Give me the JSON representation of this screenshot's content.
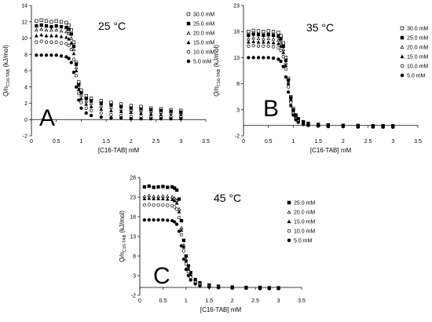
{
  "chart_data": [
    {
      "type": "scatter",
      "panel_label": "A",
      "temperature": "25 °C",
      "xlabel": "[C16-TAB] mM",
      "ylabel": "Q/n",
      "ylabel_sub": "C16-TAB",
      "ylabel_unit": "(kJ/mol)",
      "xlim": [
        0,
        3.5
      ],
      "ylim": [
        -2,
        14
      ],
      "xticks": [
        "0",
        "0.5",
        "1",
        "1.5",
        "2",
        "2.5",
        "3",
        "3.5"
      ],
      "yticks": [
        "-2",
        "0",
        "2",
        "4",
        "6",
        "8",
        "10",
        "12",
        "14"
      ],
      "xtick_values": [
        0,
        0.5,
        1,
        1.5,
        2,
        2.5,
        3,
        3.5
      ],
      "ytick_values": [
        -2,
        0,
        2,
        4,
        6,
        8,
        10,
        12,
        14
      ],
      "legend_position": "top-right",
      "series": [
        {
          "name": "30.0 mM",
          "marker": "open-square",
          "x": [
            0.1,
            0.2,
            0.3,
            0.4,
            0.5,
            0.6,
            0.7,
            0.75,
            0.8,
            0.85,
            0.9,
            0.95,
            1.0,
            1.1,
            1.2,
            1.4,
            1.6,
            1.8,
            2.0,
            2.2,
            2.4,
            2.6,
            2.8,
            3.0
          ],
          "y": [
            12.1,
            12.2,
            12.1,
            12.0,
            12.1,
            12.0,
            11.9,
            11.6,
            11.0,
            9.5,
            7.0,
            4.6,
            3.6,
            2.9,
            2.6,
            2.3,
            2.1,
            1.9,
            1.7,
            1.6,
            1.4,
            1.3,
            1.2,
            1.1
          ]
        },
        {
          "name": "25.0 mM",
          "marker": "filled-square",
          "x": [
            0.1,
            0.2,
            0.3,
            0.4,
            0.5,
            0.6,
            0.7,
            0.75,
            0.8,
            0.85,
            0.9,
            0.95,
            1.0,
            1.1,
            1.2,
            1.4,
            1.6,
            1.8,
            2.0,
            2.2,
            2.4,
            2.6,
            2.8,
            3.0
          ],
          "y": [
            11.5,
            11.6,
            11.5,
            11.4,
            11.5,
            11.4,
            11.3,
            11.1,
            10.5,
            9.0,
            6.8,
            4.3,
            3.3,
            2.6,
            2.3,
            2.0,
            1.8,
            1.6,
            1.4,
            1.3,
            1.2,
            1.1,
            1.0,
            0.9
          ]
        },
        {
          "name": "20.0 mM",
          "marker": "open-triangle",
          "x": [
            0.1,
            0.2,
            0.3,
            0.4,
            0.5,
            0.6,
            0.7,
            0.75,
            0.8,
            0.85,
            0.9,
            0.95,
            1.0,
            1.1,
            1.2,
            1.4,
            1.6,
            1.8,
            2.0,
            2.2,
            2.4,
            2.6,
            2.8,
            3.0
          ],
          "y": [
            11.0,
            11.1,
            11.0,
            11.0,
            11.0,
            10.9,
            10.8,
            10.6,
            10.0,
            8.6,
            6.4,
            4.0,
            3.0,
            2.3,
            2.0,
            1.7,
            1.5,
            1.3,
            1.2,
            1.1,
            1.0,
            0.9,
            0.8,
            0.7
          ]
        },
        {
          "name": "15.0 mM",
          "marker": "filled-triangle",
          "x": [
            0.1,
            0.2,
            0.3,
            0.4,
            0.5,
            0.6,
            0.7,
            0.75,
            0.8,
            0.85,
            0.9,
            0.95,
            1.0,
            1.1,
            1.2,
            1.4,
            1.6,
            1.8,
            2.0,
            2.2,
            2.4,
            2.6,
            2.8,
            3.0
          ],
          "y": [
            10.3,
            10.4,
            10.3,
            10.3,
            10.3,
            10.2,
            10.1,
            9.9,
            9.4,
            8.1,
            6.0,
            3.7,
            2.6,
            1.9,
            1.6,
            1.3,
            1.1,
            1.0,
            0.9,
            0.8,
            0.7,
            0.6,
            0.5,
            0.5
          ]
        },
        {
          "name": "10.0 mM",
          "marker": "open-circle",
          "x": [
            0.1,
            0.2,
            0.3,
            0.4,
            0.5,
            0.6,
            0.7,
            0.75,
            0.8,
            0.85,
            0.9,
            0.95,
            1.0,
            1.1,
            1.2,
            1.4,
            1.6,
            1.8,
            2.0,
            2.2,
            2.4,
            2.6,
            2.8,
            3.0
          ],
          "y": [
            9.5,
            9.6,
            9.5,
            9.5,
            9.5,
            9.4,
            9.3,
            9.1,
            8.6,
            7.4,
            5.4,
            3.2,
            2.1,
            1.4,
            1.1,
            0.8,
            0.6,
            0.5,
            0.4,
            0.4,
            0.3,
            0.3,
            0.3,
            0.3
          ]
        },
        {
          "name": "5.0 mM",
          "marker": "filled-circle",
          "x": [
            0.1,
            0.2,
            0.3,
            0.4,
            0.5,
            0.6,
            0.7,
            0.75,
            0.8,
            0.85,
            0.9,
            0.95,
            1.0,
            1.1,
            1.2,
            1.4,
            1.6,
            1.8,
            2.0,
            2.2,
            2.4,
            2.6,
            2.8,
            3.0
          ],
          "y": [
            7.9,
            7.9,
            7.9,
            7.9,
            7.9,
            7.8,
            7.7,
            7.5,
            7.0,
            5.8,
            4.0,
            2.4,
            1.4,
            0.8,
            0.5,
            0.3,
            0.2,
            0.2,
            0.1,
            0.1,
            0.1,
            0.1,
            0.1,
            0.1
          ]
        }
      ]
    },
    {
      "type": "scatter",
      "panel_label": "B",
      "temperature": "35 °C",
      "xlabel": "[C16-TAB] mM",
      "ylabel": "Q/n",
      "ylabel_sub": "C16-TAB",
      "ylabel_unit": "(kJ/mol)",
      "xlim": [
        0,
        3.5
      ],
      "ylim": [
        -2,
        23
      ],
      "xticks": [
        "0",
        "0.5",
        "1",
        "1.5",
        "2",
        "2.5",
        "3",
        "3.5"
      ],
      "yticks": [
        "-2",
        "3",
        "8",
        "13",
        "18",
        "23"
      ],
      "xtick_values": [
        0,
        0.5,
        1,
        1.5,
        2,
        2.5,
        3,
        3.5
      ],
      "ytick_values": [
        -2,
        3,
        8,
        13,
        18,
        23
      ],
      "legend_position": "top-right",
      "series": [
        {
          "name": "30.0 mM",
          "marker": "open-square",
          "x": [
            0.1,
            0.2,
            0.3,
            0.4,
            0.5,
            0.6,
            0.7,
            0.75,
            0.8,
            0.85,
            0.9,
            0.95,
            1.0,
            1.05,
            1.1,
            1.2,
            1.3,
            1.5,
            1.7,
            2.0,
            2.3,
            2.6,
            2.8,
            3.0
          ],
          "y": [
            18.0,
            18.2,
            18.1,
            18.0,
            18.1,
            18.0,
            17.8,
            17.2,
            15.8,
            13.0,
            9.0,
            5.5,
            3.2,
            2.0,
            1.3,
            0.7,
            0.4,
            0.2,
            0.1,
            0.0,
            0.0,
            -0.1,
            -0.1,
            -0.1
          ]
        },
        {
          "name": "25.0 mM",
          "marker": "filled-square",
          "x": [
            0.1,
            0.2,
            0.3,
            0.4,
            0.5,
            0.6,
            0.7,
            0.75,
            0.8,
            0.85,
            0.9,
            0.95,
            1.0,
            1.05,
            1.1,
            1.2,
            1.3,
            1.5,
            1.7,
            2.0,
            2.3,
            2.6,
            2.8,
            3.0
          ],
          "y": [
            17.3,
            17.5,
            17.4,
            17.3,
            17.4,
            17.3,
            17.1,
            16.6,
            15.2,
            12.5,
            8.7,
            5.3,
            3.0,
            1.9,
            1.2,
            0.6,
            0.3,
            0.1,
            0.0,
            0.0,
            -0.1,
            -0.1,
            -0.1,
            -0.1
          ]
        },
        {
          "name": "20.0 mM",
          "marker": "open-triangle",
          "x": [
            0.1,
            0.2,
            0.3,
            0.4,
            0.5,
            0.6,
            0.7,
            0.75,
            0.8,
            0.85,
            0.9,
            0.95,
            1.0,
            1.05,
            1.1,
            1.2,
            1.3,
            1.5,
            1.7,
            2.0,
            2.3,
            2.6,
            2.8,
            3.0
          ],
          "y": [
            16.6,
            16.8,
            16.7,
            16.6,
            16.7,
            16.6,
            16.4,
            15.9,
            14.6,
            12.0,
            8.3,
            5.0,
            2.8,
            1.7,
            1.1,
            0.5,
            0.2,
            0.1,
            0.0,
            -0.1,
            -0.1,
            -0.1,
            -0.2,
            -0.2
          ]
        },
        {
          "name": "15.0 mM",
          "marker": "filled-triangle",
          "x": [
            0.1,
            0.2,
            0.3,
            0.4,
            0.5,
            0.6,
            0.7,
            0.75,
            0.8,
            0.85,
            0.9,
            0.95,
            1.0,
            1.05,
            1.1,
            1.2,
            1.3,
            1.5,
            1.7,
            2.0,
            2.3,
            2.6,
            2.8,
            3.0
          ],
          "y": [
            16.0,
            16.1,
            16.0,
            16.0,
            16.0,
            15.9,
            15.7,
            15.2,
            14.0,
            11.5,
            8.0,
            4.8,
            2.6,
            1.6,
            1.0,
            0.4,
            0.2,
            0.0,
            -0.1,
            -0.1,
            -0.2,
            -0.2,
            -0.2,
            -0.2
          ]
        },
        {
          "name": "10.0 mM",
          "marker": "open-circle",
          "x": [
            0.1,
            0.2,
            0.3,
            0.4,
            0.5,
            0.6,
            0.7,
            0.75,
            0.8,
            0.85,
            0.9,
            0.95,
            1.0,
            1.05,
            1.1,
            1.2,
            1.3,
            1.5,
            1.7,
            2.0,
            2.3,
            2.6,
            2.8,
            3.0
          ],
          "y": [
            15.2,
            15.3,
            15.2,
            15.2,
            15.2,
            15.1,
            14.9,
            14.4,
            13.2,
            10.8,
            7.4,
            4.4,
            2.3,
            1.3,
            0.8,
            0.3,
            0.1,
            -0.1,
            -0.1,
            -0.2,
            -0.2,
            -0.2,
            -0.3,
            -0.3
          ]
        },
        {
          "name": "5.0 mM",
          "marker": "filled-circle",
          "x": [
            0.1,
            0.2,
            0.3,
            0.4,
            0.5,
            0.6,
            0.7,
            0.75,
            0.8,
            0.85,
            0.9,
            0.95,
            1.0,
            1.05,
            1.1,
            1.2,
            1.3,
            1.5,
            1.7,
            2.0,
            2.3,
            2.6,
            2.8,
            3.0
          ],
          "y": [
            13.0,
            13.0,
            13.0,
            13.0,
            13.0,
            12.9,
            12.7,
            12.3,
            11.3,
            9.3,
            6.4,
            3.8,
            2.0,
            1.1,
            0.6,
            0.2,
            0.0,
            -0.1,
            -0.2,
            -0.2,
            -0.3,
            -0.3,
            -0.3,
            -0.3
          ]
        }
      ]
    },
    {
      "type": "scatter",
      "panel_label": "C",
      "temperature": "45 °C",
      "xlabel": "[C16-TAB] mM",
      "ylabel": "Q/n",
      "ylabel_sub": "C16-TAB",
      "ylabel_unit": "(kJ/mol)",
      "xlim": [
        0,
        3.5
      ],
      "ylim": [
        -2,
        28
      ],
      "xticks": [
        "0",
        "0.5",
        "1",
        "1.5",
        "2",
        "2.5",
        "3",
        "3.5"
      ],
      "yticks": [
        "-2",
        "3",
        "8",
        "13",
        "18",
        "23",
        "28"
      ],
      "xtick_values": [
        0,
        0.5,
        1,
        1.5,
        2,
        2.5,
        3,
        3.5
      ],
      "ytick_values": [
        -2,
        3,
        8,
        13,
        18,
        23,
        28
      ],
      "legend_position": "top-right",
      "series": [
        {
          "name": "25.0 mM",
          "marker": "filled-square",
          "x": [
            0.1,
            0.2,
            0.3,
            0.4,
            0.5,
            0.6,
            0.7,
            0.75,
            0.8,
            0.85,
            0.9,
            0.95,
            1.0,
            1.05,
            1.1,
            1.2,
            1.3,
            1.5,
            1.7,
            2.0,
            2.3,
            2.6,
            2.8,
            3.0
          ],
          "y": [
            25.6,
            25.8,
            25.5,
            25.6,
            25.7,
            25.5,
            25.6,
            25.3,
            24.8,
            22.5,
            17.0,
            12.0,
            8.0,
            5.5,
            3.8,
            2.0,
            1.2,
            0.6,
            0.3,
            0.1,
            0.0,
            0.0,
            -0.1,
            -0.1
          ]
        },
        {
          "name": "20.0 mM",
          "marker": "open-triangle",
          "x": [
            0.1,
            0.2,
            0.3,
            0.4,
            0.5,
            0.6,
            0.7,
            0.75,
            0.8,
            0.85,
            0.9,
            0.95,
            1.0,
            1.05,
            1.1,
            1.2,
            1.3,
            1.5,
            1.7,
            2.0,
            2.3,
            2.6,
            2.8,
            3.0
          ],
          "y": [
            23.2,
            23.4,
            23.2,
            23.2,
            23.3,
            23.2,
            23.1,
            22.8,
            22.2,
            20.0,
            15.2,
            10.8,
            7.2,
            5.0,
            3.4,
            1.8,
            1.0,
            0.5,
            0.2,
            0.0,
            0.0,
            -0.1,
            -0.1,
            -0.1
          ]
        },
        {
          "name": "15.0 mM",
          "marker": "filled-triangle",
          "x": [
            0.1,
            0.2,
            0.3,
            0.4,
            0.5,
            0.6,
            0.7,
            0.75,
            0.8,
            0.85,
            0.9,
            0.95,
            1.0,
            1.05,
            1.1,
            1.2,
            1.3,
            1.5,
            1.7,
            2.0,
            2.3,
            2.6,
            2.8,
            3.0
          ],
          "y": [
            22.6,
            22.7,
            22.6,
            22.6,
            22.6,
            22.5,
            22.4,
            22.1,
            21.5,
            19.3,
            14.6,
            10.3,
            6.8,
            4.6,
            3.1,
            1.6,
            0.9,
            0.4,
            0.1,
            0.0,
            -0.1,
            -0.1,
            -0.1,
            -0.2
          ]
        },
        {
          "name": "10.0 mM",
          "marker": "open-circle",
          "x": [
            0.1,
            0.2,
            0.3,
            0.4,
            0.5,
            0.6,
            0.7,
            0.75,
            0.8,
            0.85,
            0.9,
            0.95,
            1.0,
            1.05,
            1.1,
            1.2,
            1.3,
            1.5,
            1.7,
            2.0,
            2.3,
            2.6,
            2.8,
            3.0
          ],
          "y": [
            21.0,
            21.1,
            21.0,
            21.0,
            21.0,
            20.9,
            20.8,
            20.5,
            19.9,
            17.8,
            13.4,
            9.3,
            6.0,
            4.0,
            2.6,
            1.3,
            0.7,
            0.3,
            0.1,
            -0.1,
            -0.1,
            -0.2,
            -0.2,
            -0.2
          ]
        },
        {
          "name": "5.0 mM",
          "marker": "filled-circle",
          "x": [
            0.1,
            0.2,
            0.3,
            0.4,
            0.5,
            0.6,
            0.7,
            0.75,
            0.8,
            0.85,
            0.9,
            0.95,
            1.0,
            1.05,
            1.1,
            1.2,
            1.3,
            1.5,
            1.7,
            2.0,
            2.3,
            2.6,
            2.8,
            3.0
          ],
          "y": [
            17.2,
            17.2,
            17.2,
            17.2,
            17.2,
            17.1,
            17.0,
            16.7,
            16.1,
            14.3,
            10.6,
            7.2,
            4.6,
            3.0,
            1.9,
            0.9,
            0.4,
            0.1,
            -0.1,
            -0.2,
            -0.2,
            -0.3,
            -0.3,
            -0.3
          ]
        }
      ]
    }
  ]
}
